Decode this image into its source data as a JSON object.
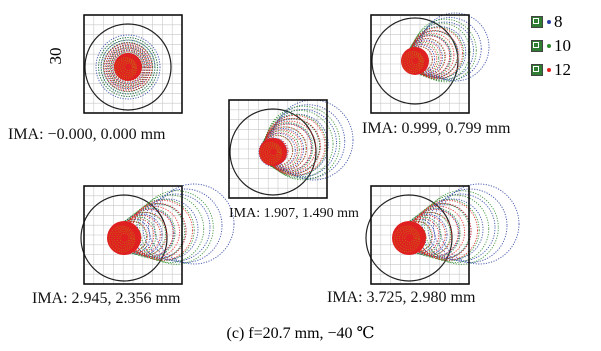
{
  "diagram": {
    "scale_label": "30",
    "legend": [
      {
        "label": "8",
        "color": "#2a3fa3"
      },
      {
        "label": "10",
        "color": "#2e8b2e"
      },
      {
        "label": "12",
        "color": "#e02020"
      }
    ],
    "panels": [
      {
        "label": "IMA: −0.000, 0.000 mm"
      },
      {
        "label": "IMA: 0.999, 0.799 mm"
      },
      {
        "label": "IMA: 1.907, 1.490 mm"
      },
      {
        "label": "IMA: 2.945, 2.356 mm"
      },
      {
        "label": "IMA: 3.725, 2.980 mm"
      }
    ],
    "caption": "(c) f=20.7 mm, −40 ℃",
    "colors": {
      "blue": "#2a3fa3",
      "green": "#2e8b2e",
      "red": "#e02020",
      "orange": "#c07a10",
      "grid": "#c8c8c8"
    }
  }
}
